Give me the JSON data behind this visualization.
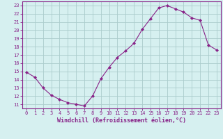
{
  "x": [
    0,
    1,
    2,
    3,
    4,
    5,
    6,
    7,
    8,
    9,
    10,
    11,
    12,
    13,
    14,
    15,
    16,
    17,
    18,
    19,
    20,
    21,
    22,
    23
  ],
  "y": [
    14.9,
    14.3,
    13.0,
    12.1,
    11.6,
    11.2,
    11.0,
    10.8,
    12.0,
    14.1,
    15.5,
    16.7,
    17.5,
    18.4,
    20.1,
    21.4,
    22.7,
    23.0,
    22.6,
    22.2,
    21.5,
    21.2,
    18.2,
    17.6
  ],
  "line_color": "#882288",
  "marker": "D",
  "marker_size": 2.0,
  "bg_color": "#d6f0f0",
  "grid_color": "#aacccc",
  "xlabel": "Windchill (Refroidissement éolien,°C)",
  "ylabel_ticks": [
    11,
    12,
    13,
    14,
    15,
    16,
    17,
    18,
    19,
    20,
    21,
    22,
    23
  ],
  "xlim": [
    -0.5,
    23.5
  ],
  "ylim": [
    10.5,
    23.5
  ],
  "axis_label_color": "#882288",
  "tick_color": "#882288",
  "tick_fontsize": 5.0,
  "xlabel_fontsize": 6.0,
  "linewidth": 0.8
}
